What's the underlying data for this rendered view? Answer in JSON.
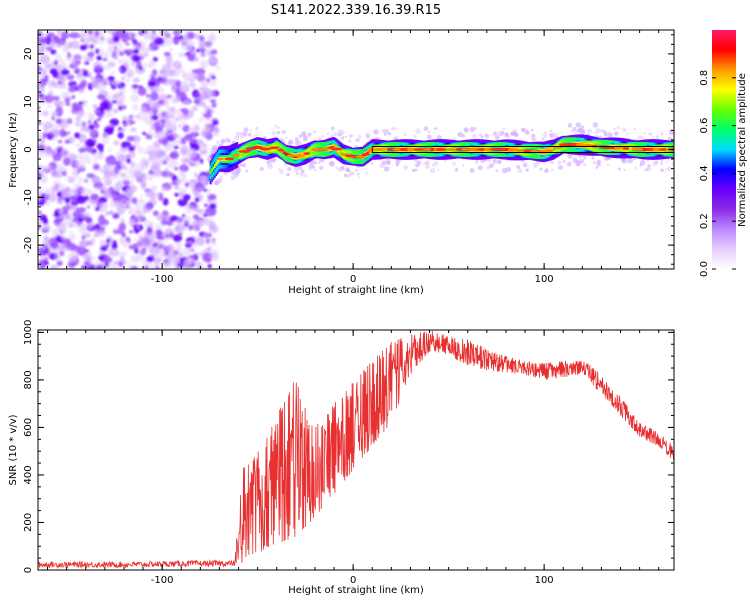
{
  "figure_title": "S141.2022.339.16.39.R15",
  "chart_data": [
    {
      "type": "heatmap",
      "title": "S141.2022.339.16.39.R15",
      "xlabel": "Height of straight line (km)",
      "ylabel": "Frequency (Hz)",
      "xlim": [
        -165,
        168
      ],
      "ylim": [
        -25,
        25
      ],
      "x_ticks": [
        -100,
        0,
        100
      ],
      "y_ticks": [
        -20,
        -10,
        0,
        10,
        20
      ],
      "colorbar": {
        "label": "Normalized spectral amplitude",
        "range": [
          0,
          1
        ],
        "ticks": [
          0.0,
          0.2,
          0.4,
          0.6,
          0.8
        ],
        "colormap": [
          "#ffffff",
          "#e6ccff",
          "#bb88ff",
          "#8a2be2",
          "#6a00ff",
          "#0000ff",
          "#00ddff",
          "#00ff66",
          "#66ff00",
          "#ffff00",
          "#ff9900",
          "#ff0000",
          "#ff1a66"
        ]
      },
      "noise_region_x": [
        -165,
        -72
      ],
      "ridge": {
        "x": [
          -75,
          -70,
          -65,
          -60,
          -55,
          -50,
          -45,
          -40,
          -35,
          -30,
          -25,
          -20,
          -15,
          -10,
          -5,
          0,
          5,
          10,
          20,
          40,
          60,
          80,
          100,
          105,
          110,
          120,
          130,
          140,
          150,
          160,
          168
        ],
        "y": [
          -5,
          -2,
          -2,
          -1,
          0,
          0.5,
          0,
          0.5,
          -1,
          -1.5,
          -1,
          0,
          0,
          0.5,
          -1,
          -1.5,
          -1.5,
          0,
          0,
          0,
          0,
          0,
          -0.5,
          0,
          1,
          1,
          0.5,
          0.3,
          0,
          0,
          0
        ]
      },
      "reference_line_x": [
        10,
        168
      ],
      "reference_line_y": 0
    },
    {
      "type": "line",
      "xlabel": "Height of straight line (km)",
      "ylabel": "SNR (10 * v/v)",
      "xlim": [
        -165,
        168
      ],
      "ylim": [
        0,
        1010
      ],
      "x_ticks": [
        -100,
        0,
        100
      ],
      "y_ticks": [
        0,
        200,
        400,
        600,
        800,
        1000
      ],
      "line_color": "#e83030",
      "envelope": {
        "x": [
          -165,
          -120,
          -80,
          -62,
          -58,
          -50,
          -40,
          -30,
          -20,
          -10,
          0,
          10,
          20,
          30,
          40,
          50,
          60,
          70,
          80,
          90,
          100,
          110,
          120,
          125,
          130,
          140,
          150,
          160,
          168
        ],
        "low": [
          10,
          10,
          15,
          15,
          30,
          70,
          110,
          140,
          220,
          320,
          420,
          520,
          620,
          820,
          920,
          900,
          860,
          840,
          830,
          820,
          800,
          810,
          820,
          780,
          740,
          650,
          560,
          520,
          450
        ],
        "high": [
          35,
          35,
          40,
          40,
          430,
          500,
          650,
          810,
          600,
          700,
          800,
          880,
          960,
          990,
          1010,
          985,
          970,
          930,
          900,
          880,
          870,
          880,
          880,
          860,
          820,
          730,
          620,
          580,
          520
        ]
      }
    }
  ]
}
